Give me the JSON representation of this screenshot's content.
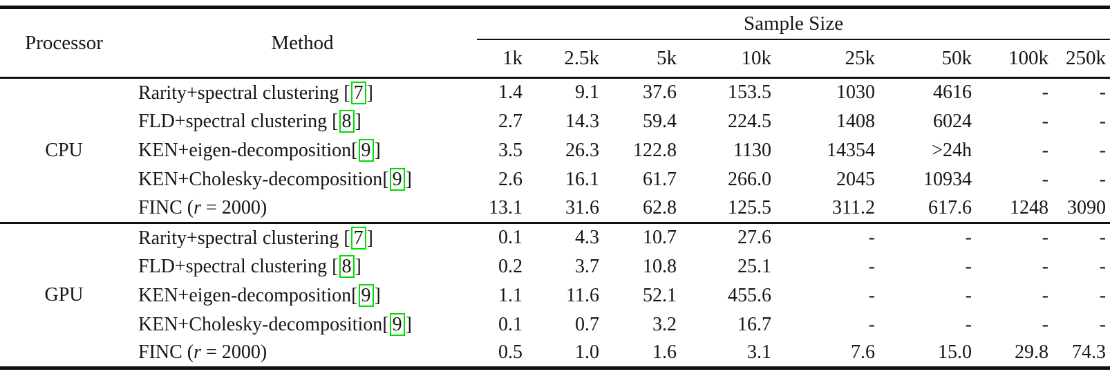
{
  "table": {
    "headers": {
      "processor": "Processor",
      "method": "Method",
      "sample_size": "Sample Size",
      "sizes": [
        "1k",
        "2.5k",
        "5k",
        "10k",
        "25k",
        "50k",
        "100k",
        "250k"
      ]
    },
    "citation_brackets": [
      "[",
      "]"
    ],
    "citation_box_color": "#00dd00",
    "sections": [
      {
        "processor": "CPU",
        "rows": [
          {
            "label": "Rarity+spectral clustering ",
            "citation": "7",
            "values": [
              "1.4",
              "9.1",
              "37.6",
              "153.5",
              "1030",
              "4616",
              "-",
              "-"
            ]
          },
          {
            "label": "FLD+spectral clustering ",
            "citation": "8",
            "values": [
              "2.7",
              "14.3",
              "59.4",
              "224.5",
              "1408",
              "6024",
              "-",
              "-"
            ]
          },
          {
            "label": "KEN+eigen-decomposition",
            "citation": "9",
            "values": [
              "3.5",
              "26.3",
              "122.8",
              "1130",
              "14354",
              ">24h",
              "-",
              "-"
            ]
          },
          {
            "label": "KEN+Cholesky-decomposition",
            "citation": "9",
            "values": [
              "2.6",
              "16.1",
              "61.7",
              "266.0",
              "2045",
              "10934",
              "-",
              "-"
            ]
          },
          {
            "label_pre_italic": "FINC (",
            "italic": "r",
            "label_post_italic": " = 2000)",
            "values": [
              "13.1",
              "31.6",
              "62.8",
              "125.5",
              "311.2",
              "617.6",
              "1248",
              "3090"
            ]
          }
        ]
      },
      {
        "processor": "GPU",
        "rows": [
          {
            "label": "Rarity+spectral clustering ",
            "citation": "7",
            "values": [
              "0.1",
              "4.3",
              "10.7",
              "27.6",
              "-",
              "-",
              "-",
              "-"
            ]
          },
          {
            "label": "FLD+spectral clustering ",
            "citation": "8",
            "values": [
              "0.2",
              "3.7",
              "10.8",
              "25.1",
              "-",
              "-",
              "-",
              "-"
            ]
          },
          {
            "label": "KEN+eigen-decomposition",
            "citation": "9",
            "values": [
              "1.1",
              "11.6",
              "52.1",
              "455.6",
              "-",
              "-",
              "-",
              "-"
            ]
          },
          {
            "label": "KEN+Cholesky-decomposition",
            "citation": "9",
            "values": [
              "0.1",
              "0.7",
              "3.2",
              "16.7",
              "-",
              "-",
              "-",
              "-"
            ]
          },
          {
            "label_pre_italic": "FINC (",
            "italic": "r",
            "label_post_italic": " = 2000)",
            "values": [
              "0.5",
              "1.0",
              "1.6",
              "3.1",
              "7.6",
              "15.0",
              "29.8",
              "74.3"
            ]
          }
        ]
      }
    ]
  }
}
